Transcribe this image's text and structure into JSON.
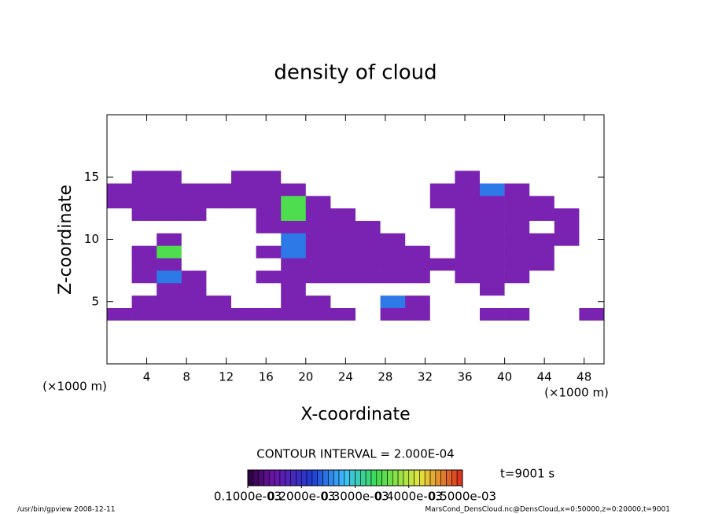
{
  "chart_data": {
    "type": "contour",
    "title": "density of cloud",
    "x_label": "X-coordinate",
    "y_label": "Z-coordinate",
    "x_unit": "(×1000 m)",
    "y_unit": "(×1000 m)",
    "xlim": [
      0,
      50
    ],
    "ylim": [
      0,
      20
    ],
    "xticks": [
      4,
      8,
      12,
      16,
      20,
      24,
      28,
      32,
      36,
      40,
      44,
      48
    ],
    "yticks": [
      5,
      10,
      15
    ],
    "x": [
      1.25,
      3.75,
      6.25,
      8.75,
      11.25,
      13.75,
      16.25,
      18.75,
      21.25,
      23.75,
      26.25,
      28.75,
      31.25,
      33.75,
      36.25,
      38.75,
      41.25,
      43.75,
      46.25,
      48.75
    ],
    "y": [
      4,
      5,
      6,
      7,
      8,
      9,
      10,
      11,
      12,
      13,
      14,
      15
    ],
    "z": [
      [
        0.0001,
        0.0001,
        0.0001,
        0.0001,
        0.0001,
        0.0001,
        0.0001,
        0.0001,
        0.0001,
        0.0001,
        0,
        0.0001,
        0.0001,
        0,
        0,
        0.0001,
        0.0001,
        0,
        0,
        0.0001
      ],
      [
        0,
        0.0001,
        0.0001,
        0.0001,
        0.0001,
        0,
        0,
        0.0001,
        0.0001,
        0,
        0,
        0.0002,
        0.0001,
        0,
        0,
        0,
        0,
        0,
        0,
        0
      ],
      [
        0,
        0,
        0.0001,
        0.0001,
        0,
        0,
        0,
        0.0001,
        0,
        0,
        0,
        0,
        0,
        0,
        0,
        0.0001,
        0,
        0,
        0,
        0
      ],
      [
        0,
        0.0001,
        0.0002,
        0.0001,
        0,
        0,
        0.0001,
        0.0001,
        0.0001,
        0.0001,
        0.0001,
        0.0001,
        0.0001,
        0,
        0.0001,
        0.0001,
        0.0001,
        0,
        0,
        0
      ],
      [
        0,
        0.0001,
        0.0001,
        0,
        0,
        0,
        0,
        0.0001,
        0.0001,
        0.0001,
        0.0001,
        0.0001,
        0.0001,
        0.0001,
        0.0001,
        0.0001,
        0.0001,
        0.0001,
        0,
        0
      ],
      [
        0,
        0.0001,
        0.0003,
        0,
        0,
        0,
        0.0001,
        0.0002,
        0.0001,
        0.0001,
        0.0001,
        0.0001,
        0.0001,
        0,
        0.0001,
        0.0001,
        0.0001,
        0.0001,
        0,
        0
      ],
      [
        0,
        0,
        0.0001,
        0,
        0,
        0,
        0,
        0.0002,
        0.0001,
        0.0001,
        0.0001,
        0.0001,
        0,
        0,
        0.0001,
        0.0001,
        0.0001,
        0.0001,
        0.0001,
        0
      ],
      [
        0,
        0,
        0,
        0,
        0,
        0,
        0.0001,
        0.0001,
        0.0001,
        0.0001,
        0.0001,
        0,
        0,
        0,
        0.0001,
        0.0001,
        0.0001,
        0,
        0.0001,
        0
      ],
      [
        0,
        0.0001,
        0.0001,
        0.0001,
        0,
        0,
        0.0001,
        0.0003,
        0.0001,
        0.0001,
        0,
        0,
        0,
        0,
        0.0001,
        0.0001,
        0.0001,
        0.0001,
        0.0001,
        0
      ],
      [
        0.0001,
        0.0001,
        0.0001,
        0.0001,
        0.0001,
        0.0001,
        0.0001,
        0.0003,
        0.0001,
        0,
        0,
        0,
        0,
        0.0001,
        0.0001,
        0.0001,
        0.0001,
        0.0001,
        0,
        0
      ],
      [
        0.0001,
        0.0001,
        0.0001,
        0.0001,
        0.0001,
        0.0001,
        0.0001,
        0.0001,
        0,
        0,
        0,
        0,
        0,
        0.0001,
        0.0001,
        0.0002,
        0.0001,
        0,
        0,
        0
      ],
      [
        0,
        0.0001,
        0.0001,
        0,
        0,
        0.0001,
        0.0001,
        0,
        0,
        0,
        0,
        0,
        0,
        0,
        0.0001,
        0,
        0,
        0,
        0,
        0
      ]
    ],
    "contour_interval": "CONTOUR INTERVAL = 2.000E-04",
    "time_label": "t=9001 s",
    "clim": [
      0.0001,
      0.0005
    ],
    "colorbar_ticks": [
      {
        "value": 0.0001,
        "label": "0.1000e-03"
      },
      {
        "value": 0.0002,
        "label": "0.2000e-03"
      },
      {
        "value": 0.0003,
        "label": "0.3000e-03"
      },
      {
        "value": 0.0004,
        "label": "0.4000e-03"
      },
      {
        "value": 0.0005,
        "label": "0.5000e-03"
      }
    ],
    "footer_left": "/usr/bin/gpview  2008-12-11",
    "footer_right": "MarsCond_DensCloud.nc@DensCloud,x=0:50000,z=0:20000,t=9001"
  }
}
